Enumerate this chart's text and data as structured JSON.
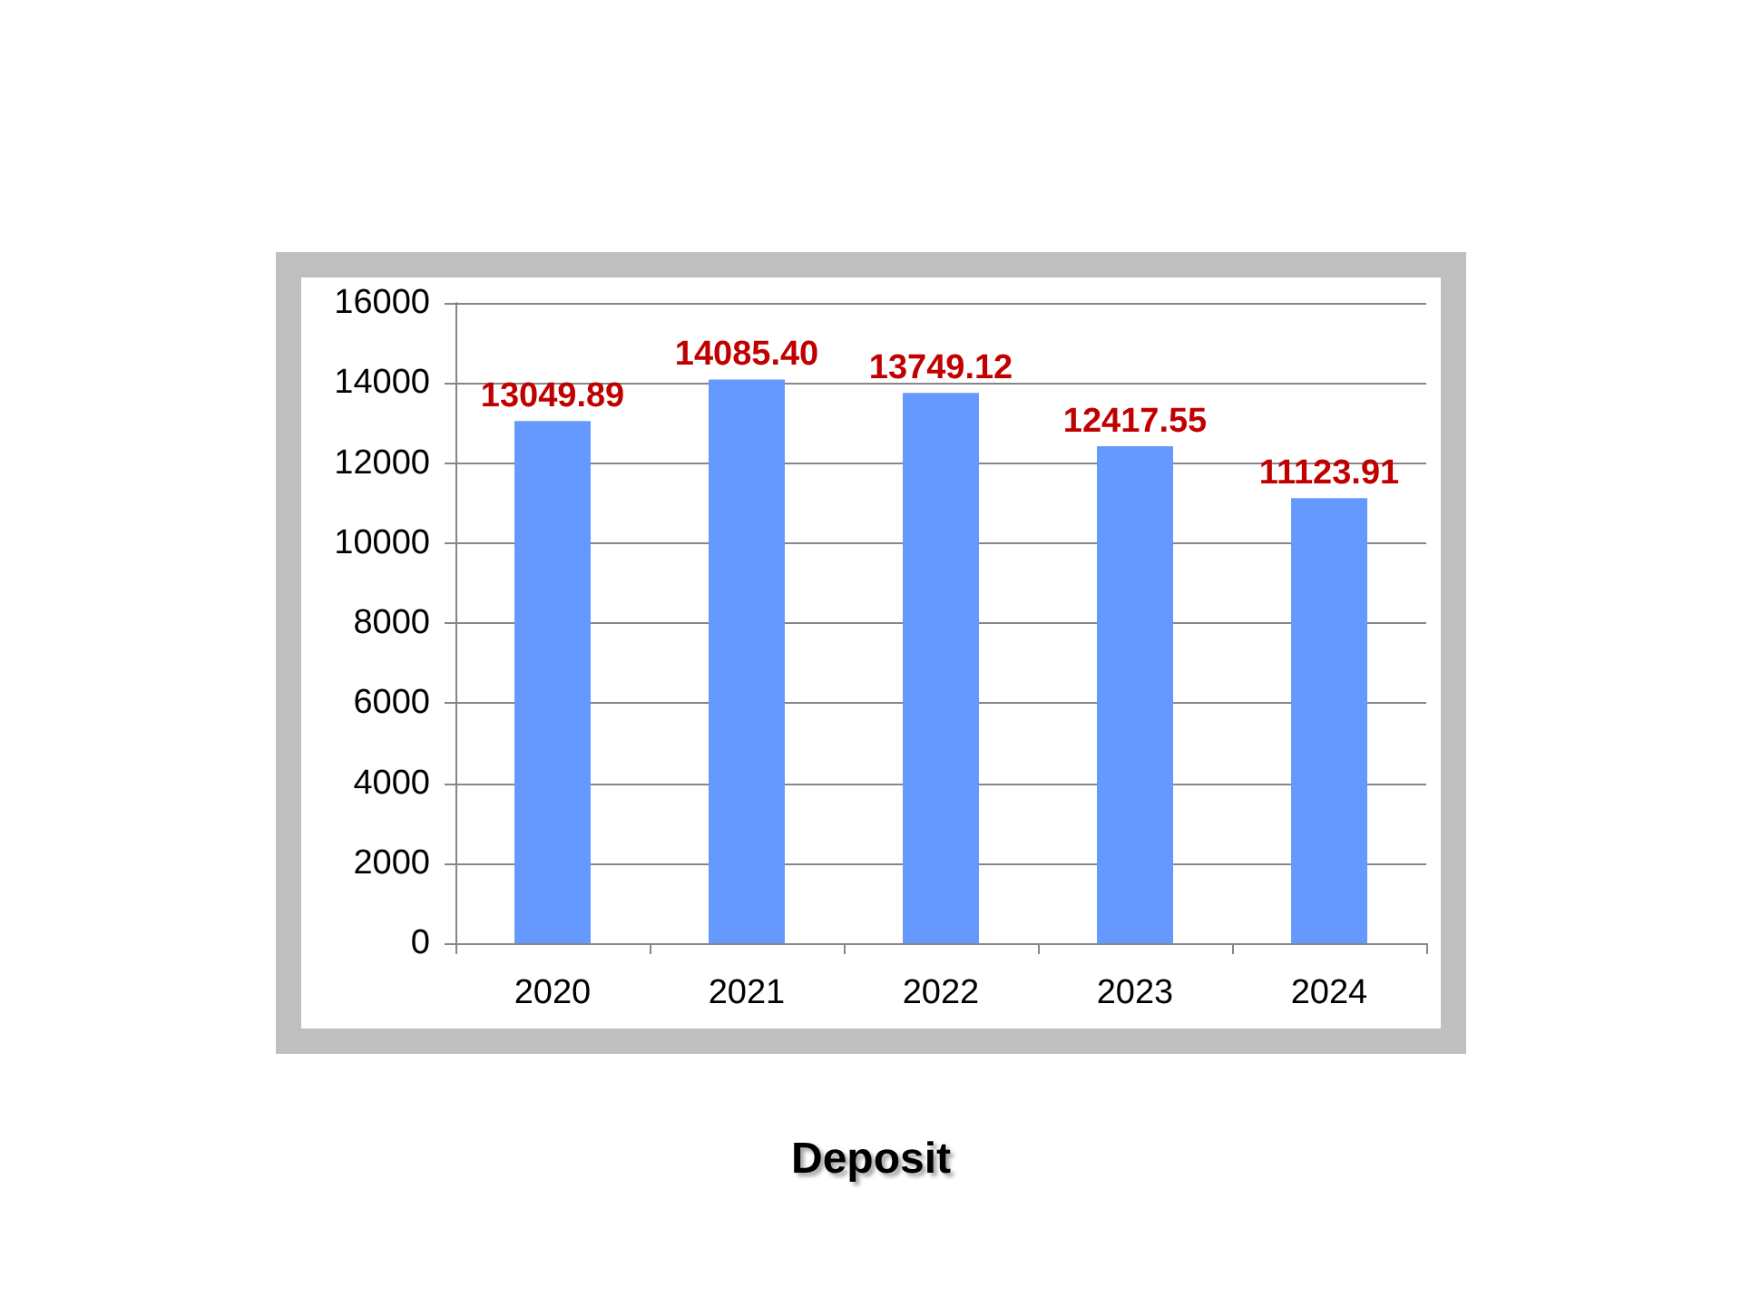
{
  "chart_data": {
    "type": "bar",
    "title": "Deposit",
    "categories": [
      "2020",
      "2021",
      "2022",
      "2023",
      "2024"
    ],
    "values": [
      13049.89,
      14085.4,
      13749.12,
      12417.55,
      11123.91
    ],
    "value_labels": [
      "13049.89",
      "14085.40",
      "13749.12",
      "12417.55",
      "11123.91"
    ],
    "color": "#6699ff",
    "ylim": [
      0,
      16000
    ],
    "yticks": [
      0,
      2000,
      4000,
      6000,
      8000,
      10000,
      12000,
      14000,
      16000
    ],
    "grid": "y"
  }
}
